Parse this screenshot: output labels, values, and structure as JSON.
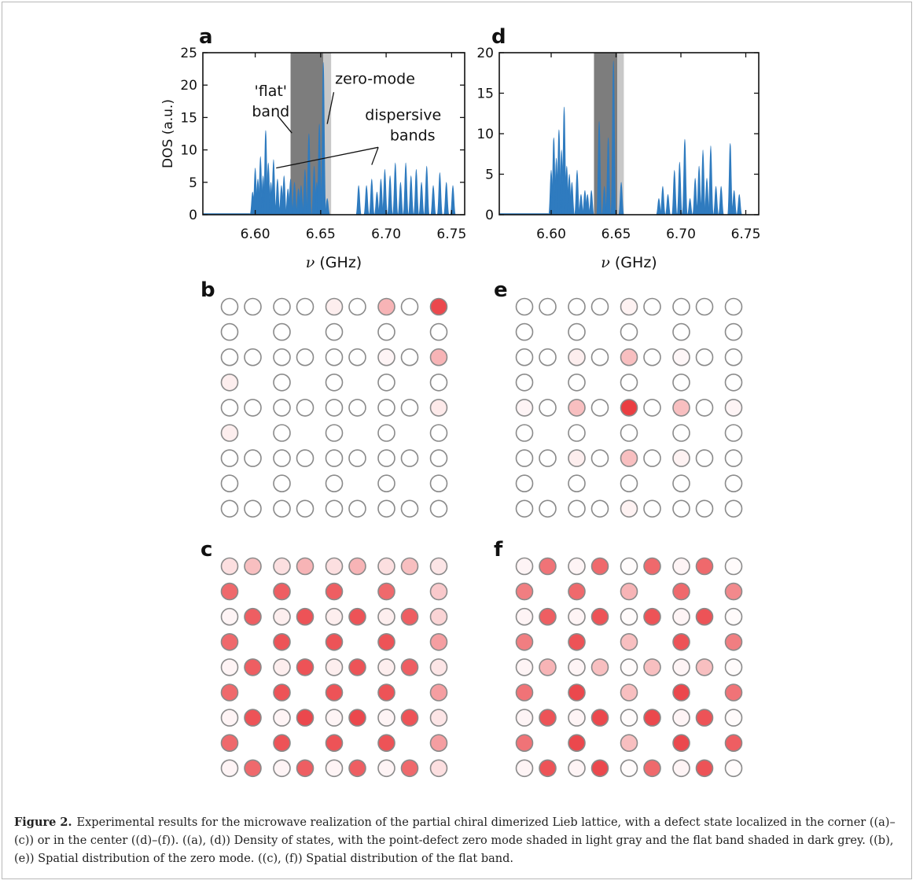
{
  "figure": {
    "caption_label": "Figure 2.",
    "caption_text": "Experimental results for the microwave realization of the partial chiral dimerized Lieb lattice, with a defect state localized in the corner ((a)–(c)) or in the center ((d)–(f)). ((a), (d)) Density of states, with the point-defect zero mode shaded in light gray and the flat band shaded in dark grey. ((b), (e)) Spatial distribution of the zero mode. ((c), (f)) Spatial distribution of the flat band."
  },
  "chart_data": [
    {
      "panel": "a",
      "type": "area",
      "xlabel": "ν (GHz)",
      "ylabel": "DOS (a.u.)",
      "xlim": [
        6.56,
        6.76
      ],
      "ylim": [
        0,
        25
      ],
      "xticks": [
        6.6,
        6.65,
        6.7,
        6.75
      ],
      "xtick_labels": [
        "6.60",
        "6.65",
        "6.70",
        "6.75"
      ],
      "yticks": [
        0,
        5,
        10,
        15,
        20,
        25
      ],
      "ytick_labels": [
        "0",
        "5",
        "10",
        "15",
        "20",
        "25"
      ],
      "flat_band_range": [
        6.627,
        6.652
      ],
      "zero_mode_range": [
        6.652,
        6.658
      ],
      "color": "#2f7bbf",
      "flat_band_color": "#7d7d7d",
      "zero_mode_color": "#c8c8c8",
      "baseline_end": 6.596,
      "peaks": [
        {
          "x": 6.598,
          "y": 3.5
        },
        {
          "x": 6.6,
          "y": 7.2
        },
        {
          "x": 6.602,
          "y": 5.5
        },
        {
          "x": 6.604,
          "y": 9.0
        },
        {
          "x": 6.606,
          "y": 6.0
        },
        {
          "x": 6.608,
          "y": 13.0
        },
        {
          "x": 6.61,
          "y": 8.0
        },
        {
          "x": 6.612,
          "y": 5.0
        },
        {
          "x": 6.614,
          "y": 8.5
        },
        {
          "x": 6.617,
          "y": 5.5
        },
        {
          "x": 6.62,
          "y": 4.5
        },
        {
          "x": 6.622,
          "y": 6.0
        },
        {
          "x": 6.625,
          "y": 4.0
        },
        {
          "x": 6.627,
          "y": 5.5
        },
        {
          "x": 6.63,
          "y": 5.0
        },
        {
          "x": 6.633,
          "y": 4.0
        },
        {
          "x": 6.635,
          "y": 4.5
        },
        {
          "x": 6.638,
          "y": 7.0
        },
        {
          "x": 6.641,
          "y": 12.5
        },
        {
          "x": 6.645,
          "y": 7.5
        },
        {
          "x": 6.647,
          "y": 5.0
        },
        {
          "x": 6.649,
          "y": 14.0
        },
        {
          "x": 6.652,
          "y": 23.5
        },
        {
          "x": 6.655,
          "y": 2.5
        },
        {
          "x": 6.679,
          "y": 4.5
        },
        {
          "x": 6.685,
          "y": 4.5
        },
        {
          "x": 6.689,
          "y": 5.5
        },
        {
          "x": 6.693,
          "y": 3.5
        },
        {
          "x": 6.696,
          "y": 5.5
        },
        {
          "x": 6.699,
          "y": 7.0
        },
        {
          "x": 6.703,
          "y": 6.0
        },
        {
          "x": 6.707,
          "y": 8.0
        },
        {
          "x": 6.711,
          "y": 5.0
        },
        {
          "x": 6.715,
          "y": 8.0
        },
        {
          "x": 6.719,
          "y": 6.0
        },
        {
          "x": 6.723,
          "y": 7.0
        },
        {
          "x": 6.727,
          "y": 5.0
        },
        {
          "x": 6.731,
          "y": 7.5
        },
        {
          "x": 6.736,
          "y": 4.5
        },
        {
          "x": 6.741,
          "y": 6.5
        },
        {
          "x": 6.746,
          "y": 5.0
        },
        {
          "x": 6.751,
          "y": 4.5
        }
      ],
      "annotations": [
        {
          "text": "'flat'",
          "lines": [
            "'flat'",
            "band"
          ],
          "x": 6.598,
          "y": 18.3
        },
        {
          "text": "zero-mode",
          "lines": [
            "zero-mode"
          ],
          "x": 6.661,
          "y": 20.2
        },
        {
          "text": "dispersive bands",
          "lines": [
            "dispersive",
            "bands"
          ],
          "x": 6.713,
          "y": 14.6
        }
      ]
    },
    {
      "panel": "d",
      "type": "area",
      "xlabel": "ν (GHz)",
      "ylabel": "",
      "xlim": [
        6.56,
        6.76
      ],
      "ylim": [
        0,
        20
      ],
      "xticks": [
        6.6,
        6.65,
        6.7,
        6.75
      ],
      "xtick_labels": [
        "6.60",
        "6.65",
        "6.70",
        "6.75"
      ],
      "yticks": [
        0,
        5,
        10,
        15,
        20
      ],
      "ytick_labels": [
        "0",
        "5",
        "10",
        "15",
        "20"
      ],
      "flat_band_range": [
        6.633,
        6.651
      ],
      "zero_mode_range": [
        6.651,
        6.656
      ],
      "color": "#2f7bbf",
      "flat_band_color": "#7d7d7d",
      "zero_mode_color": "#c8c8c8",
      "baseline_end": 6.598,
      "peaks": [
        {
          "x": 6.6,
          "y": 5.5
        },
        {
          "x": 6.602,
          "y": 9.5
        },
        {
          "x": 6.604,
          "y": 7.0
        },
        {
          "x": 6.606,
          "y": 10.5
        },
        {
          "x": 6.608,
          "y": 8.0
        },
        {
          "x": 6.61,
          "y": 13.3
        },
        {
          "x": 6.612,
          "y": 6.0
        },
        {
          "x": 6.614,
          "y": 5.0
        },
        {
          "x": 6.616,
          "y": 4.0
        },
        {
          "x": 6.62,
          "y": 5.5
        },
        {
          "x": 6.623,
          "y": 2.5
        },
        {
          "x": 6.626,
          "y": 3.0
        },
        {
          "x": 6.628,
          "y": 2.5
        },
        {
          "x": 6.631,
          "y": 3.0
        },
        {
          "x": 6.637,
          "y": 11.5
        },
        {
          "x": 6.641,
          "y": 3.5
        },
        {
          "x": 6.644,
          "y": 9.5
        },
        {
          "x": 6.648,
          "y": 19.0
        },
        {
          "x": 6.654,
          "y": 4.0
        },
        {
          "x": 6.683,
          "y": 2.0
        },
        {
          "x": 6.686,
          "y": 3.5
        },
        {
          "x": 6.69,
          "y": 2.5
        },
        {
          "x": 6.695,
          "y": 5.5
        },
        {
          "x": 6.699,
          "y": 6.5
        },
        {
          "x": 6.703,
          "y": 9.3
        },
        {
          "x": 6.707,
          "y": 2.0
        },
        {
          "x": 6.711,
          "y": 4.5
        },
        {
          "x": 6.714,
          "y": 6.0
        },
        {
          "x": 6.717,
          "y": 8.0
        },
        {
          "x": 6.72,
          "y": 4.5
        },
        {
          "x": 6.723,
          "y": 8.5
        },
        {
          "x": 6.727,
          "y": 3.5
        },
        {
          "x": 6.731,
          "y": 3.5
        },
        {
          "x": 6.738,
          "y": 8.8
        },
        {
          "x": 6.741,
          "y": 3.0
        },
        {
          "x": 6.745,
          "y": 2.5
        }
      ],
      "annotations": []
    },
    {
      "panel": "b",
      "type": "heatmap",
      "grid_rows": 9,
      "grid_cols": 9,
      "sites": [
        [
          0,
          0,
          0,
          0,
          0.08,
          0,
          0.35,
          0,
          0.85
        ],
        [
          0,
          null,
          0,
          null,
          0,
          null,
          0,
          null,
          0
        ],
        [
          0,
          0,
          0,
          0,
          0,
          0,
          0.05,
          0,
          0.35
        ],
        [
          0.08,
          null,
          0,
          null,
          0,
          null,
          0,
          null,
          0
        ],
        [
          0,
          0,
          0,
          0,
          0,
          0,
          0,
          0,
          0.1
        ],
        [
          0.08,
          null,
          0,
          null,
          0,
          null,
          0,
          null,
          0
        ],
        [
          0,
          0,
          0,
          0,
          0,
          0,
          0,
          0,
          0
        ],
        [
          0,
          null,
          0,
          null,
          0,
          null,
          0,
          null,
          0
        ],
        [
          0,
          0,
          0,
          0,
          0,
          0,
          0,
          0,
          0
        ]
      ]
    },
    {
      "panel": "e",
      "type": "heatmap",
      "grid_rows": 9,
      "grid_cols": 9,
      "sites": [
        [
          0,
          0,
          0,
          0,
          0.06,
          0,
          0,
          0,
          0
        ],
        [
          0,
          null,
          0,
          null,
          0,
          null,
          0,
          null,
          0
        ],
        [
          0,
          0,
          0.08,
          0,
          0.3,
          0,
          0.04,
          0,
          0
        ],
        [
          0,
          null,
          0,
          null,
          0,
          null,
          0,
          null,
          0
        ],
        [
          0.05,
          0,
          0.3,
          0,
          0.9,
          0,
          0.3,
          0,
          0.05
        ],
        [
          0,
          null,
          0,
          null,
          0,
          null,
          0,
          null,
          0
        ],
        [
          0,
          0,
          0.08,
          0,
          0.3,
          0,
          0.06,
          0,
          0
        ],
        [
          0,
          null,
          0,
          null,
          0,
          null,
          0,
          null,
          0
        ],
        [
          0,
          0,
          0,
          0,
          0.06,
          0,
          0,
          0,
          0
        ]
      ]
    },
    {
      "panel": "c",
      "type": "heatmap",
      "grid_rows": 9,
      "grid_cols": 9,
      "sites": [
        [
          0.15,
          0.3,
          0.15,
          0.35,
          0.15,
          0.35,
          0.15,
          0.3,
          0.12
        ],
        [
          0.7,
          null,
          0.75,
          null,
          0.75,
          null,
          0.7,
          null,
          0.25
        ],
        [
          0.05,
          0.75,
          0.08,
          0.8,
          0.08,
          0.8,
          0.08,
          0.75,
          0.2
        ],
        [
          0.7,
          null,
          0.8,
          null,
          0.8,
          null,
          0.8,
          null,
          0.45
        ],
        [
          0.05,
          0.75,
          0.08,
          0.8,
          0.08,
          0.8,
          0.08,
          0.75,
          0.12
        ],
        [
          0.7,
          null,
          0.8,
          null,
          0.8,
          null,
          0.8,
          null,
          0.45
        ],
        [
          0.05,
          0.8,
          0.05,
          0.85,
          0.05,
          0.85,
          0.05,
          0.8,
          0.12
        ],
        [
          0.7,
          null,
          0.8,
          null,
          0.8,
          null,
          0.8,
          null,
          0.45
        ],
        [
          0.05,
          0.7,
          0.05,
          0.75,
          0.05,
          0.75,
          0.05,
          0.7,
          0.15
        ]
      ]
    },
    {
      "panel": "f",
      "type": "heatmap",
      "grid_rows": 9,
      "grid_cols": 9,
      "sites": [
        [
          0.05,
          0.65,
          0.05,
          0.7,
          0.02,
          0.7,
          0.05,
          0.7,
          0.02
        ],
        [
          0.6,
          null,
          0.7,
          null,
          0.35,
          null,
          0.7,
          null,
          0.55
        ],
        [
          0.05,
          0.75,
          0.05,
          0.8,
          0.02,
          0.8,
          0.05,
          0.8,
          0.02
        ],
        [
          0.6,
          null,
          0.8,
          null,
          0.3,
          null,
          0.8,
          null,
          0.6
        ],
        [
          0.05,
          0.35,
          0.05,
          0.3,
          0.02,
          0.3,
          0.05,
          0.3,
          0.02
        ],
        [
          0.65,
          null,
          0.85,
          null,
          0.3,
          null,
          0.85,
          null,
          0.65
        ],
        [
          0.05,
          0.8,
          0.05,
          0.85,
          0.02,
          0.85,
          0.05,
          0.8,
          0.02
        ],
        [
          0.65,
          null,
          0.85,
          null,
          0.3,
          null,
          0.85,
          null,
          0.75
        ],
        [
          0.05,
          0.8,
          0.05,
          0.85,
          0.02,
          0.7,
          0.05,
          0.8,
          0.02
        ]
      ]
    }
  ]
}
